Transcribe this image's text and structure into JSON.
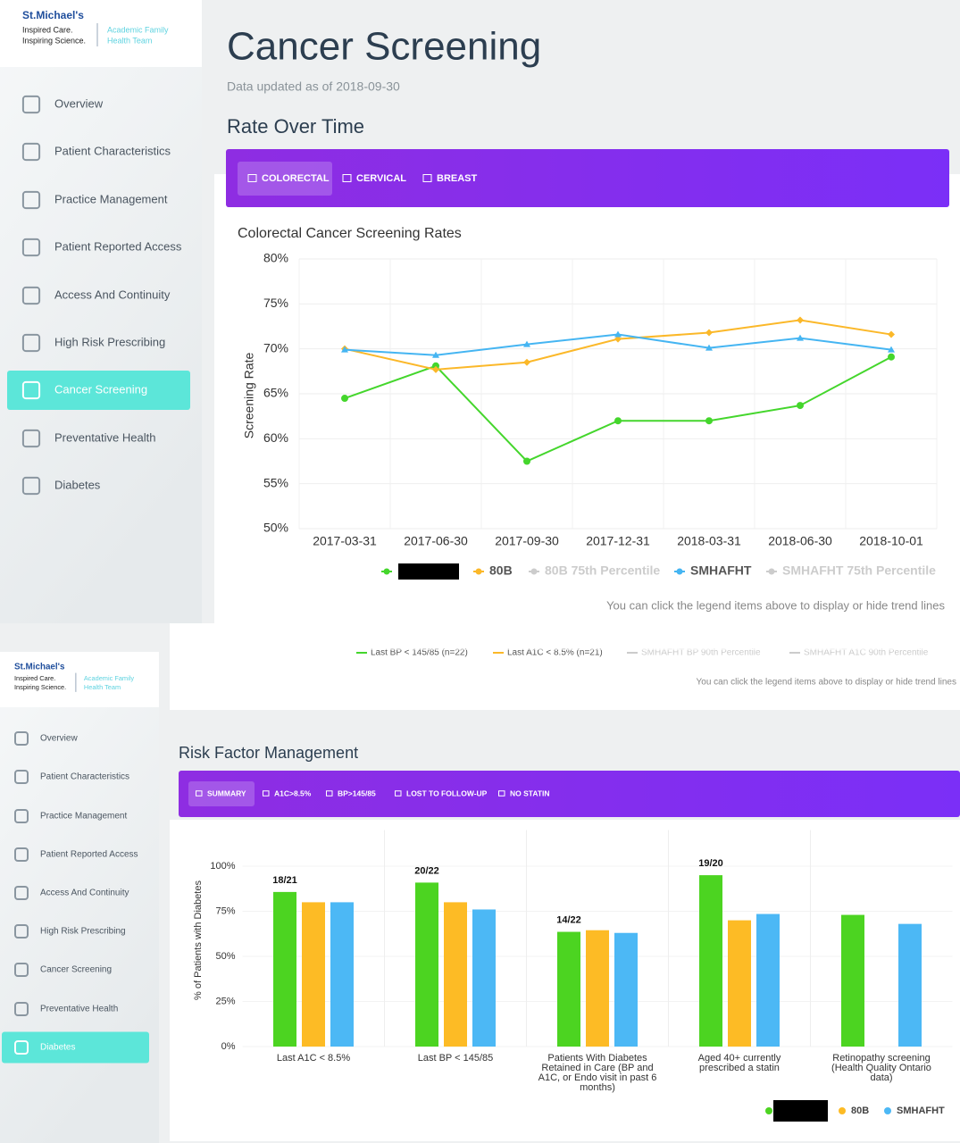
{
  "top": {
    "logo": {
      "brand": "St.Michael's",
      "line1": "Inspired Care.",
      "line2": "Inspiring Science.",
      "team1": "Academic Family",
      "team2": "Health Team"
    },
    "nav": [
      "Overview",
      "Patient Characteristics",
      "Practice Management",
      "Patient Reported Access",
      "Access And Continuity",
      "High Risk Prescribing",
      "Cancer Screening",
      "Preventative Health",
      "Diabetes"
    ],
    "active_nav": 6,
    "header": {
      "title": "Cancer Screening",
      "updated": "Data updated as of 2018-09-30",
      "section": "Rate Over Time"
    },
    "tabs": [
      "COLORECTAL",
      "CERVICAL",
      "BREAST"
    ],
    "active_tab": 0
  },
  "bottom": {
    "logo": {
      "brand": "St.Michael's",
      "line1": "Inspired Care.",
      "line2": "Inspiring Science.",
      "team1": "Academic Family",
      "team2": "Health Team"
    },
    "nav": [
      "Overview",
      "Patient Characteristics",
      "Practice Management",
      "Patient Reported Access",
      "Access And Continuity",
      "High Risk Prescribing",
      "Cancer Screening",
      "Preventative Health",
      "Diabetes"
    ],
    "active_nav": 8,
    "cut_legend": [
      "Last BP < 145/85 (n=22)",
      "Last A1C < 8.5% (n=21)",
      "SMHAFHT BP 90th Percentile",
      "SMHAFHT A1C 90th Percentile"
    ],
    "cut_note": "You can click the legend items above to display or hide trend lines",
    "section": "Risk Factor Management",
    "tabs": [
      "SUMMARY",
      "A1C>8.5%",
      "BP>145/85",
      "LOST TO FOLLOW-UP",
      "NO STATIN"
    ],
    "active_tab": 0
  },
  "chart_data": [
    {
      "type": "line",
      "title": "Colorectal Cancer Screening Rates",
      "y_label": "Screening Rate",
      "categories": [
        "2017-03-31",
        "2017-06-30",
        "2017-09-30",
        "2017-12-31",
        "2018-03-31",
        "2018-06-30",
        "2018-10-01"
      ],
      "ylim": [
        50,
        80
      ],
      "yticks": [
        {
          "value": 50,
          "label": "50%"
        },
        {
          "value": 55,
          "label": "55%"
        },
        {
          "value": 60,
          "label": "60%"
        },
        {
          "value": 65,
          "label": "65%"
        },
        {
          "value": 70,
          "label": "70%"
        },
        {
          "value": 75,
          "label": "75%"
        },
        {
          "value": 80,
          "label": "80%"
        }
      ],
      "grid": true,
      "series": [
        {
          "name": null,
          "color": "#44d62c",
          "marker": "circle",
          "values": [
            64.5,
            68.1,
            57.5,
            62,
            62,
            63.7,
            69.1
          ]
        },
        {
          "name": "80B",
          "color": "#fbb829",
          "marker": "diamond",
          "values": [
            70,
            67.7,
            68.5,
            71.1,
            71.8,
            73.2,
            71.6
          ]
        },
        {
          "name": "80B 75th Percentile",
          "color": "#cccccc",
          "hidden": true
        },
        {
          "name": "SMHAFHT",
          "color": "#45b5f2",
          "marker": "triangle",
          "values": [
            69.9,
            69.3,
            70.5,
            71.6,
            70.1,
            71.2,
            69.9
          ]
        },
        {
          "name": "SMHAFHT 75th Percentile",
          "color": "#cccccc",
          "hidden": true
        }
      ],
      "note": "You can click the legend items above to display or hide trend lines"
    },
    {
      "type": "bar",
      "y_label": "% of Patients with Diabetes",
      "categories": [
        "Last A1C < 8.5%",
        "Last BP < 145/85",
        "Patients With Diabetes Retained in Care (BP and A1C, or Endo visit in past 6 months)",
        "Aged 40+ currently prescribed a statin",
        "Retinopathy screening (Health Quality Ontario data)"
      ],
      "ylim": [
        0,
        120
      ],
      "yticks": [
        {
          "value": 0,
          "label": "0%"
        },
        {
          "value": 25,
          "label": "25%"
        },
        {
          "value": 50,
          "label": "50%"
        },
        {
          "value": 75,
          "label": "75%"
        },
        {
          "value": 100,
          "label": "100%"
        }
      ],
      "grid": true,
      "series": [
        {
          "name": null,
          "color": "#4cd421",
          "values": [
            85.7,
            90.9,
            63.6,
            95,
            73
          ],
          "value_labels": [
            "18/21",
            "20/22",
            "14/22",
            "19/20",
            null
          ]
        },
        {
          "name": "80B",
          "color": "#fdbb25",
          "values": [
            80,
            80,
            64.5,
            70,
            null
          ]
        },
        {
          "name": "SMHAFHT",
          "color": "#4cb8f5",
          "values": [
            80,
            76,
            63,
            73.5,
            68
          ]
        }
      ]
    }
  ]
}
